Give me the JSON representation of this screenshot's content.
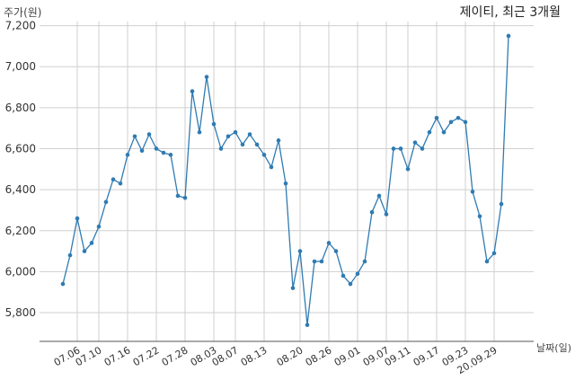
{
  "chart_data": {
    "type": "line",
    "title": "제이티, 최근 3개월",
    "ylabel": "주가(원)",
    "xlabel": "날짜(일)",
    "ylim": [
      5660,
      7220
    ],
    "yticks": [
      5800,
      6000,
      6200,
      6400,
      6600,
      6800,
      7000,
      7200
    ],
    "ytick_labels": [
      "5,800",
      "6,000",
      "6,200",
      "6,400",
      "6,600",
      "6,800",
      "7,000",
      "7,200"
    ],
    "xtick_labels": [
      "07.06",
      "07.10",
      "07.16",
      "07.22",
      "07.28",
      "08.03",
      "08.07",
      "08.13",
      "08.20",
      "08.26",
      "09.01",
      "09.07",
      "09.11",
      "09.17",
      "09.23",
      "20.09.29"
    ],
    "xtick_index": [
      2,
      5,
      9,
      13,
      17,
      21,
      24,
      28,
      33,
      37,
      41,
      45,
      48,
      52,
      56,
      60
    ],
    "grid": true,
    "line_color": "#2f7bb2",
    "series": [
      {
        "values": [
          5940,
          6080,
          6260,
          6100,
          6140,
          6220,
          6340,
          6450,
          6430,
          6570,
          6660,
          6590,
          6670,
          6600,
          6580,
          6570,
          6370,
          6360,
          6880,
          6680,
          6950,
          6720,
          6600,
          6660,
          6680,
          6620,
          6670,
          6620,
          6570,
          6510,
          6640,
          6430,
          5920,
          6100,
          5740,
          6050,
          6050,
          6140,
          6100,
          5980,
          5940,
          5990,
          6050,
          6290,
          6370,
          6280,
          6600,
          6600,
          6500,
          6630,
          6600,
          6680,
          6750,
          6680,
          6730,
          6750,
          6730,
          6390,
          6270,
          6050,
          6090,
          6330,
          7150
        ]
      }
    ]
  }
}
